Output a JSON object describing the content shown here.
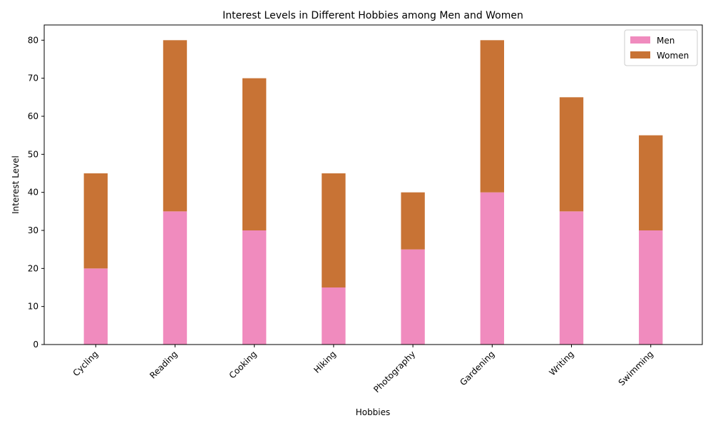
{
  "chart_data": {
    "type": "bar",
    "stacked": true,
    "title": "Interest Levels in Different Hobbies among Men and Women",
    "xlabel": "Hobbies",
    "ylabel": "Interest Level",
    "categories": [
      "Cycling",
      "Reading",
      "Cooking",
      "Hiking",
      "Photography",
      "Gardening",
      "Writing",
      "Swimming"
    ],
    "series": [
      {
        "name": "Men",
        "color": "#f08bbe",
        "values": [
          20,
          35,
          30,
          15,
          25,
          40,
          35,
          30
        ]
      },
      {
        "name": "Women",
        "color": "#c87335",
        "values": [
          25,
          45,
          40,
          30,
          15,
          40,
          30,
          25
        ]
      }
    ],
    "ylim": [
      0,
      84
    ],
    "yticks": [
      0,
      10,
      20,
      30,
      40,
      50,
      60,
      70,
      80
    ],
    "grid": false,
    "legend": "top-right"
  }
}
